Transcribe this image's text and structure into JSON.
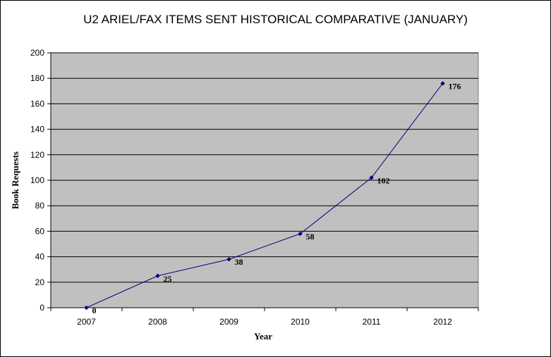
{
  "chart_data": {
    "type": "line",
    "title": "U2 ARIEL/FAX ITEMS SENT HISTORICAL COMPARATIVE (JANUARY)",
    "xlabel": "Year",
    "ylabel": "Book Requests",
    "categories": [
      "2007",
      "2008",
      "2009",
      "2010",
      "2011",
      "2012"
    ],
    "series": [
      {
        "values": [
          0,
          25,
          38,
          58,
          102,
          176
        ],
        "color": "#000080"
      }
    ],
    "ylim": [
      0,
      200
    ],
    "yticks": [
      "0",
      "20",
      "40",
      "60",
      "80",
      "100",
      "120",
      "140",
      "160",
      "180",
      "200"
    ],
    "grid": true,
    "legend": "none",
    "plot_background": "#c0c0c0"
  }
}
